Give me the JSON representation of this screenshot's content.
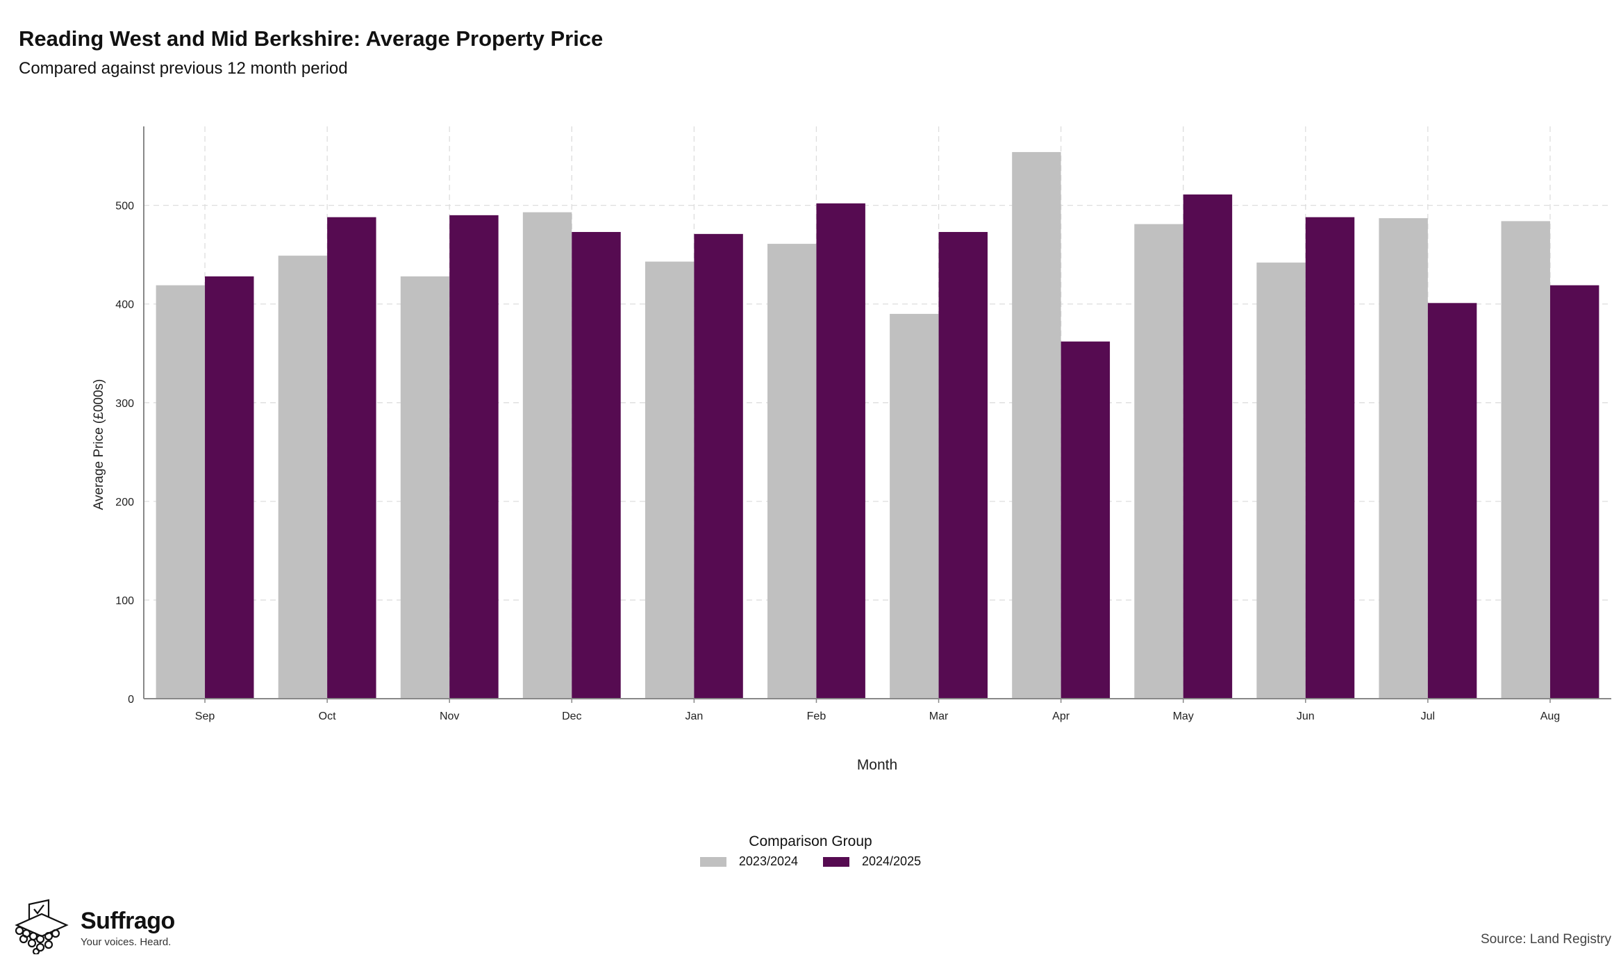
{
  "header": {
    "title": "Reading West and Mid Berkshire: Average Property Price",
    "subtitle": "Compared against previous 12 month period"
  },
  "legend": {
    "title": "Comparison Group",
    "items": [
      "2023/2024",
      "2024/2025"
    ]
  },
  "footer": {
    "brand_name": "Suffrago",
    "brand_tagline": "Your voices. Heard.",
    "source": "Source: Land Registry"
  },
  "colors": {
    "series_2023_2024": "#c0c0c0",
    "series_2024_2025": "#560b51",
    "grid": "#dddddd",
    "axis": "#888888"
  },
  "icons": [
    "ballot-box-icon"
  ],
  "chart_data": {
    "type": "bar",
    "title": "Reading West and Mid Berkshire: Average Property Price",
    "subtitle": "Compared against previous 12 month period",
    "xlabel": "Month",
    "ylabel": "Average Price (£000s)",
    "categories": [
      "Sep",
      "Oct",
      "Nov",
      "Dec",
      "Jan",
      "Feb",
      "Mar",
      "Apr",
      "May",
      "Jun",
      "Jul",
      "Aug"
    ],
    "series": [
      {
        "name": "2023/2024",
        "values": [
          419,
          449,
          428,
          493,
          443,
          461,
          390,
          554,
          481,
          442,
          487,
          484
        ]
      },
      {
        "name": "2024/2025",
        "values": [
          428,
          488,
          490,
          473,
          471,
          502,
          473,
          362,
          511,
          488,
          401,
          419
        ]
      }
    ],
    "ylim": [
      0,
      580
    ],
    "yticks": [
      0,
      100,
      200,
      300,
      400,
      500
    ],
    "grid": true,
    "legend_position": "bottom"
  }
}
